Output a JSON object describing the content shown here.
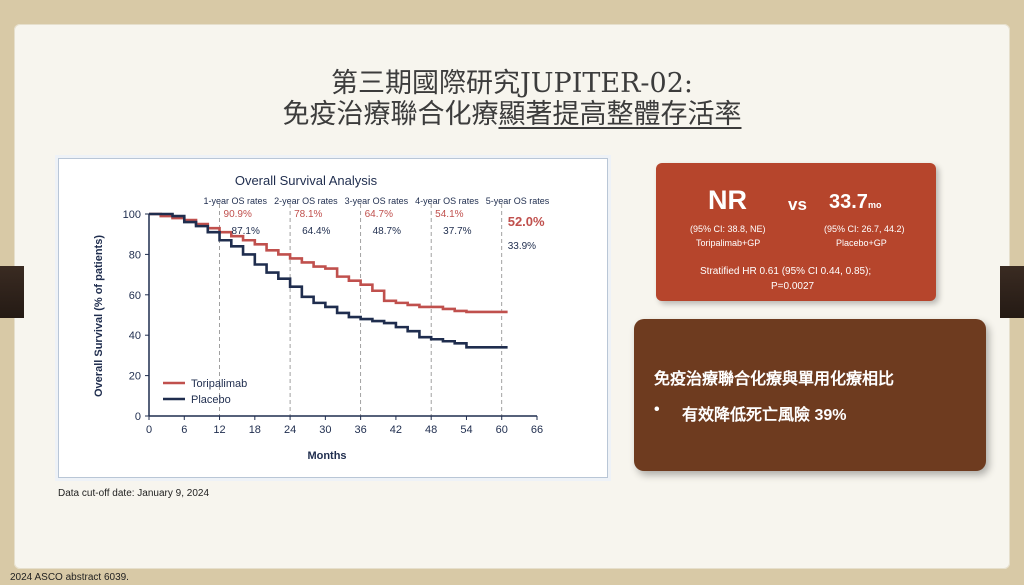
{
  "slide": {
    "title_line1": "第三期國際研究JUPITER-02:",
    "title_line2_a": "免疫治療聯合化療",
    "title_line2_b": "顯著提高整體存活率",
    "cutoff_note": "Data cut-off date: January 9, 2024",
    "footer": "2024 ASCO abstract 6039."
  },
  "top_box": {
    "nr": "NR",
    "vs": "vs",
    "median_placebo": "33.7",
    "median_unit": "mo",
    "ci_toripalimab": "(95% CI: 38.8, NE)",
    "ci_placebo": "(95% CI: 26.7, 44.2)",
    "arm_toripalimab": "Toripalimab+GP",
    "arm_placebo": "Placebo+GP",
    "hr_line1": "Stratified HR 0.61 (95% CI 0.44, 0.85);",
    "hr_line2": "P=0.0027"
  },
  "bottom_box": {
    "heading": "免疫治療聯合化療與單用化療相比",
    "bullet_mark": "•",
    "bullet": "有效降低死亡風險 39%"
  },
  "colors": {
    "toripalimab": "#c0504d",
    "placebo": "#1f2d4e",
    "top_box": "#b6452c",
    "bottom_box": "#6e3b1f"
  },
  "chart_data": {
    "type": "line",
    "title": "Overall Survival Analysis",
    "xlabel": "Months",
    "ylabel": "Overall Survival (% of patients)",
    "xlim": [
      0,
      66
    ],
    "ylim": [
      0,
      100
    ],
    "xticks": [
      0,
      6,
      12,
      18,
      24,
      30,
      36,
      42,
      48,
      54,
      60,
      66
    ],
    "yticks": [
      0,
      20,
      40,
      60,
      80,
      100
    ],
    "legend_position": "bottom-left",
    "series": [
      {
        "name": "Toripalimab",
        "color": "#c0504d",
        "x": [
          0,
          2,
          4,
          6,
          8,
          10,
          12,
          14,
          16,
          18,
          20,
          22,
          24,
          26,
          28,
          30,
          32,
          34,
          36,
          38,
          40,
          42,
          44,
          46,
          48,
          50,
          52,
          54,
          56,
          58,
          60,
          61
        ],
        "y": [
          100,
          99,
          98,
          97,
          95,
          93,
          91,
          89,
          87,
          85,
          82,
          80,
          78,
          76,
          74,
          73,
          69,
          67,
          65,
          62,
          57,
          56,
          55,
          54,
          54,
          53,
          52,
          51.5,
          51.5,
          51.5,
          51.5,
          51.5
        ]
      },
      {
        "name": "Placebo",
        "color": "#1f2d4e",
        "x": [
          0,
          2,
          4,
          6,
          8,
          10,
          12,
          14,
          16,
          18,
          20,
          22,
          24,
          26,
          28,
          30,
          32,
          34,
          36,
          38,
          40,
          42,
          44,
          46,
          48,
          50,
          52,
          54,
          56,
          58,
          60,
          61
        ],
        "y": [
          100,
          100,
          99,
          96,
          94,
          91,
          87,
          84,
          80,
          75,
          71,
          68,
          64,
          59,
          56,
          54,
          51,
          49,
          48,
          47,
          46,
          44,
          42,
          39,
          38,
          37,
          36,
          34,
          34,
          34,
          34,
          34
        ]
      }
    ],
    "annotations": [
      {
        "x": 12,
        "header": "1-year OS rates",
        "toripalimab": "90.9%",
        "placebo": "87.1%"
      },
      {
        "x": 24,
        "header": "2-year OS rates",
        "toripalimab": "78.1%",
        "placebo": "64.4%"
      },
      {
        "x": 36,
        "header": "3-year OS rates",
        "toripalimab": "64.7%",
        "placebo": "48.7%"
      },
      {
        "x": 48,
        "header": "4-year OS rates",
        "toripalimab": "54.1%",
        "placebo": "37.7%"
      },
      {
        "x": 60,
        "header": "5-year OS rates",
        "toripalimab": "52.0%",
        "placebo": "33.9%"
      }
    ]
  }
}
